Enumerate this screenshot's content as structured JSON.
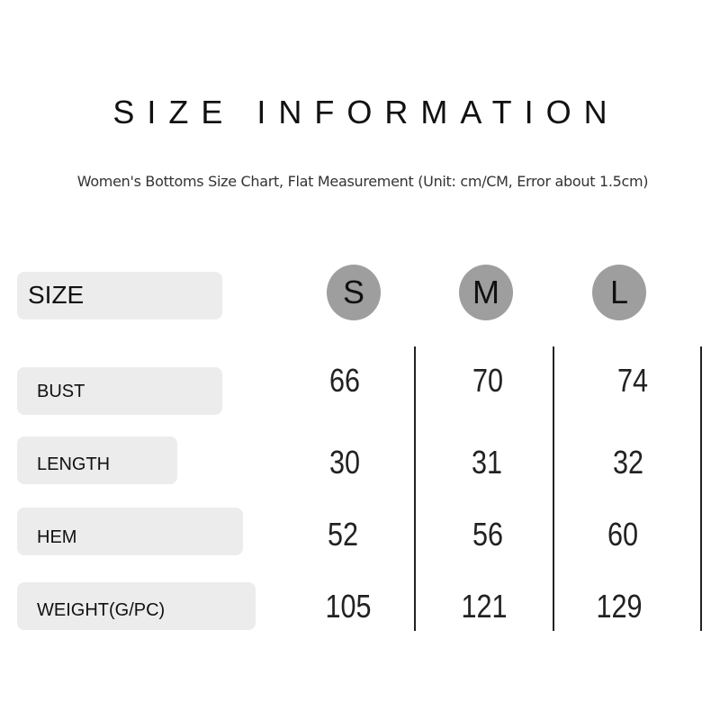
{
  "title": "SIZE INFORMATION",
  "subtitle": "Women's Bottoms Size Chart, Flat Measurement (Unit: cm/CM, Error about 1.5cm)",
  "header_label": "SIZE",
  "sizes": [
    "S",
    "M",
    "L"
  ],
  "circle_color": "#9e9e9e",
  "rows": [
    {
      "label": "BUST",
      "values": [
        "66",
        "70",
        "74"
      ]
    },
    {
      "label": "LENGTH",
      "values": [
        "30",
        "31",
        "32"
      ]
    },
    {
      "label": "HEM",
      "values": [
        "52",
        "56",
        "60"
      ]
    },
    {
      "label": "WEIGHT(G/PC)",
      "values": [
        "105",
        "121",
        "129"
      ]
    }
  ]
}
